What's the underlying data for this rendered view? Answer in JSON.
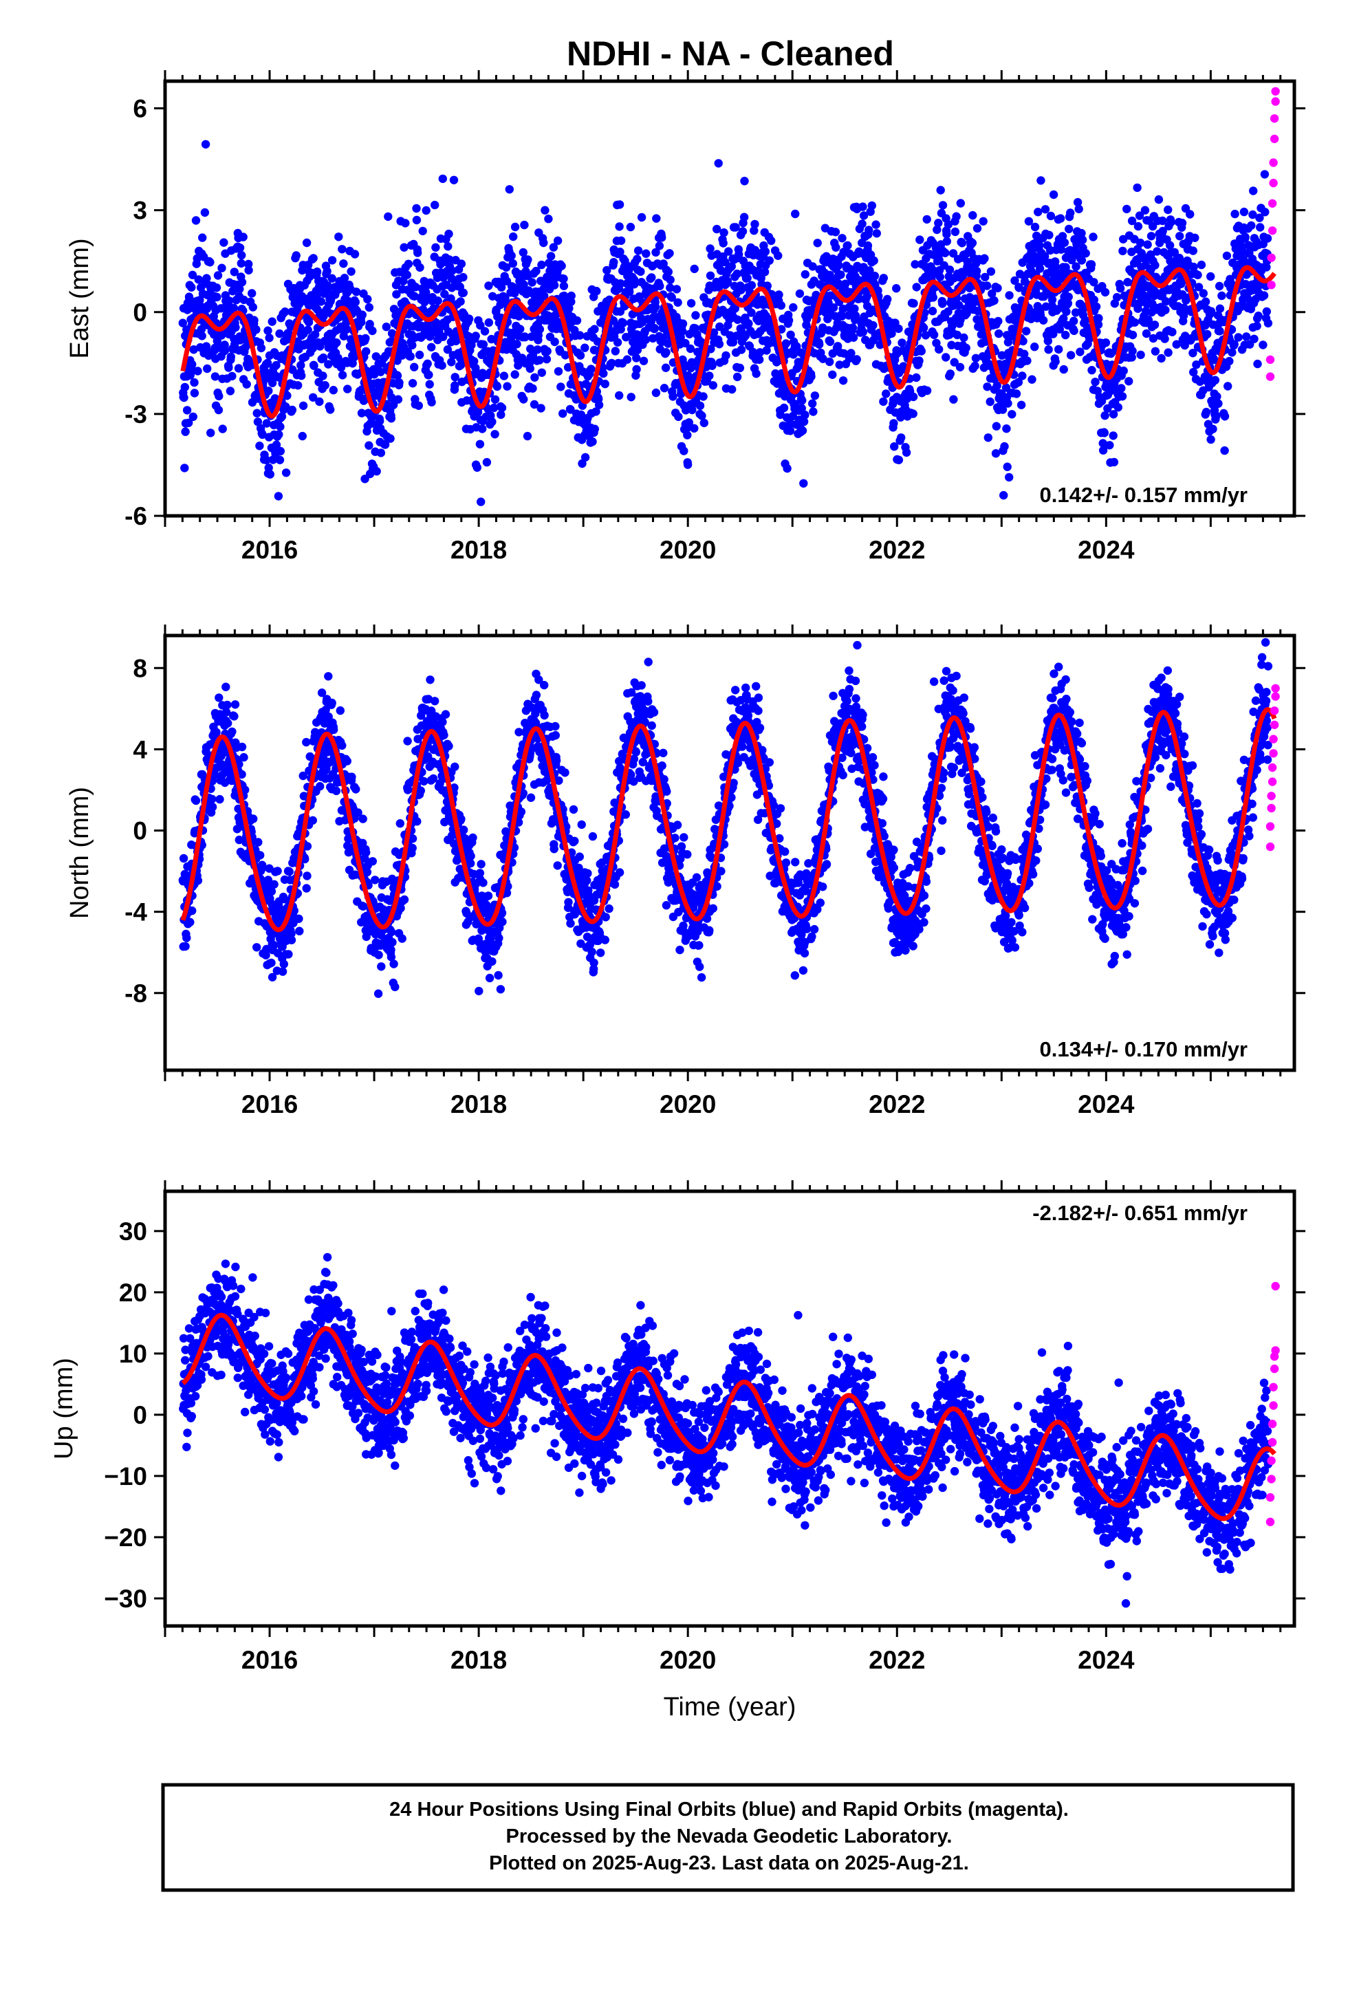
{
  "title": "NDHI  - NA - Cleaned",
  "footer": {
    "lines": [
      "24 Hour Positions Using Final Orbits (blue) and Rapid Orbits (magenta).",
      "Processed by the Nevada Geodetic Laboratory.",
      "Plotted on 2025-Aug-23. Last data on 2025-Aug-21."
    ]
  },
  "colors": {
    "final": "#0000ff",
    "rapid": "#ff00ff",
    "model": "#ff0000",
    "axis": "#000000"
  },
  "chart_data": [
    {
      "type": "scatter",
      "panel": "east",
      "ylabel": "East (mm)",
      "xlabel": "",
      "xlim": [
        2015.0,
        2025.8
      ],
      "ylim": [
        -6,
        6.8
      ],
      "xticks": [
        2016,
        2018,
        2020,
        2022,
        2024
      ],
      "xtick_labels": [
        "2016",
        "2018",
        "2020",
        "2022",
        "2024"
      ],
      "yticks": [
        -6,
        -3,
        0,
        3,
        6
      ],
      "ytick_labels": [
        "-6",
        "-3",
        "0",
        "3",
        "6"
      ],
      "rate_text": "0.142+/- 0.157 mm/yr",
      "rate_position": "bottom-right",
      "series": [
        {
          "role": "final",
          "x_range": [
            2015.17,
            2025.55
          ],
          "note_values": "daily points",
          "model": {
            "a0": -0.4,
            "rate": 0.142,
            "t0": 2020.4,
            "a_cos": -1.3,
            "a_sin": -0.2,
            "a_cos2": -0.7,
            "a_sin2": -0.2,
            "scatter": 1.1
          }
        },
        {
          "role": "rapid",
          "x": [
            2025.57,
            2025.57,
            2025.58,
            2025.58,
            2025.59,
            2025.59,
            2025.6,
            2025.6,
            2025.61,
            2025.61,
            2025.62,
            2025.62
          ],
          "y": [
            -1.9,
            -1.4,
            0.8,
            1.6,
            2.4,
            3.2,
            3.8,
            4.4,
            5.1,
            5.7,
            6.2,
            6.5
          ]
        }
      ]
    },
    {
      "type": "scatter",
      "panel": "north",
      "ylabel": "North (mm)",
      "xlabel": "",
      "xlim": [
        2015.0,
        2025.8
      ],
      "ylim": [
        -11.8,
        9.6
      ],
      "xticks": [
        2016,
        2018,
        2020,
        2022,
        2024
      ],
      "xtick_labels": [
        "2016",
        "2018",
        "2020",
        "2022",
        "2024"
      ],
      "yticks": [
        -8,
        -4,
        0,
        4,
        8
      ],
      "ytick_labels": [
        "-8",
        "-4",
        "0",
        "4",
        "8"
      ],
      "rate_text": "0.134+/- 0.170 mm/yr",
      "rate_position": "bottom-right",
      "series": [
        {
          "role": "final",
          "x_range": [
            2015.17,
            2025.55
          ],
          "model": {
            "a0": 0.2,
            "rate": 0.134,
            "t0": 2020.4,
            "a_cos": -4.4,
            "a_sin": -1.8,
            "a_cos2": 0.4,
            "a_sin2": 0.0,
            "scatter": 1.2
          }
        },
        {
          "role": "rapid",
          "x": [
            2025.57,
            2025.57,
            2025.58,
            2025.58,
            2025.59,
            2025.59,
            2025.6,
            2025.6,
            2025.61,
            2025.61,
            2025.62,
            2025.62
          ],
          "y": [
            -0.8,
            0.2,
            1.1,
            1.7,
            2.4,
            3.1,
            3.8,
            4.5,
            5.2,
            5.9,
            6.6,
            7.0
          ]
        }
      ]
    },
    {
      "type": "scatter",
      "panel": "up",
      "ylabel": "Up (mm)",
      "xlabel": "Time (year)",
      "xlim": [
        2015.0,
        2025.8
      ],
      "ylim": [
        -34.5,
        36.5
      ],
      "xticks": [
        2016,
        2018,
        2020,
        2022,
        2024
      ],
      "xtick_labels": [
        "2016",
        "2018",
        "2020",
        "2022",
        "2024"
      ],
      "yticks": [
        -30,
        -20,
        -10,
        0,
        10,
        20,
        30
      ],
      "ytick_labels": [
        "−30",
        "−20",
        "−10",
        "0",
        "10",
        "20",
        "30"
      ],
      "rate_text": "-2.182+/- 0.651 mm/yr",
      "rate_position": "top-right",
      "series": [
        {
          "role": "final",
          "x_range": [
            2015.17,
            2025.55
          ],
          "model": {
            "a0": -1.0,
            "rate": -2.182,
            "t0": 2020.4,
            "a_cos": -5.5,
            "a_sin": -2.5,
            "a_cos2": 0.8,
            "a_sin2": 0.0,
            "scatter": 4.2
          }
        },
        {
          "role": "rapid",
          "x": [
            2025.57,
            2025.57,
            2025.58,
            2025.58,
            2025.59,
            2025.59,
            2025.6,
            2025.6,
            2025.61,
            2025.61,
            2025.62,
            2025.62
          ],
          "y": [
            -17.5,
            -13.5,
            -10.5,
            -7.5,
            -4.5,
            -1.5,
            1.5,
            4.5,
            7.5,
            9.5,
            10.5,
            21.0
          ]
        }
      ]
    }
  ]
}
